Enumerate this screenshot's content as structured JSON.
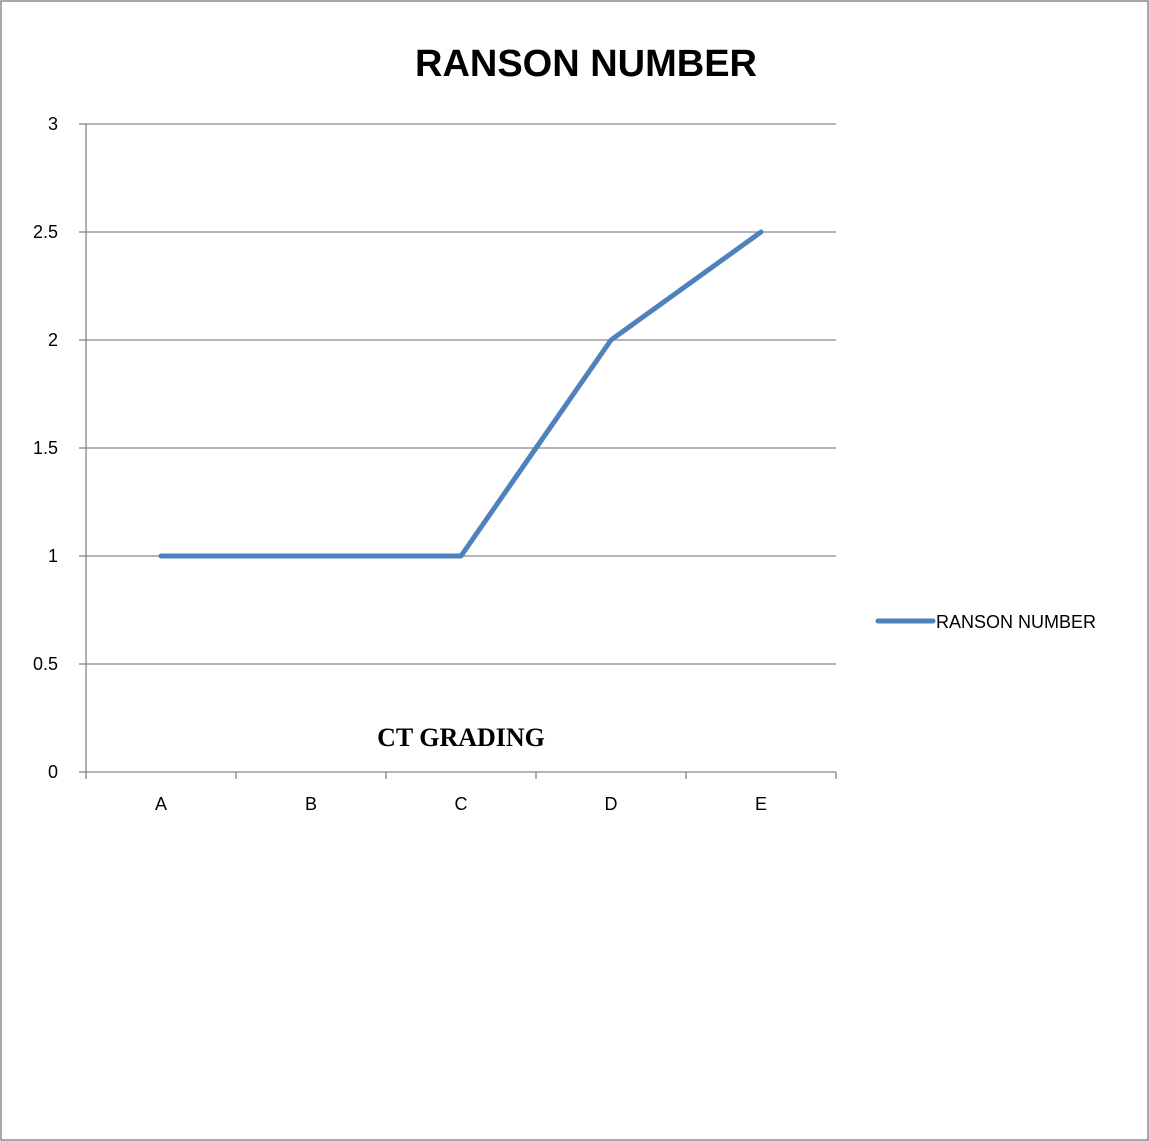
{
  "chart_data": {
    "type": "line",
    "title": "RANSON NUMBER",
    "xlabel": "CT GRADING",
    "ylabel": "",
    "categories": [
      "A",
      "B",
      "C",
      "D",
      "E"
    ],
    "series": [
      {
        "name": "RANSON NUMBER",
        "values": [
          1,
          1,
          1,
          2,
          2.5
        ],
        "color": "#4F81BD"
      }
    ],
    "ylim": [
      0,
      3
    ],
    "yticks": [
      "0",
      "0.5",
      "1",
      "1.5",
      "2",
      "2.5",
      "3"
    ],
    "grid": true,
    "legend_position": "right"
  }
}
